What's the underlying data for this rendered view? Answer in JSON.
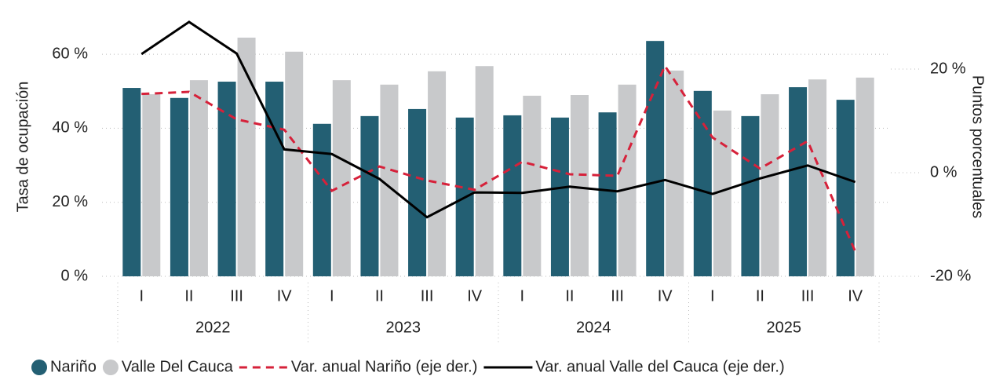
{
  "chart_data": {
    "type": "bar",
    "categories": [
      "I",
      "II",
      "III",
      "IV",
      "I",
      "II",
      "III",
      "IV",
      "I",
      "II",
      "III",
      "IV",
      "I",
      "II",
      "III",
      "IV"
    ],
    "years": [
      "2022",
      "2023",
      "2024",
      "2025"
    ],
    "y_label": "Tasa de ocupación",
    "y2_label": "Puntos porcentuales",
    "ylim": [
      0,
      70
    ],
    "yticks": [
      {
        "value": 0,
        "label": "0 %"
      },
      {
        "value": 20,
        "label": "20 %"
      },
      {
        "value": 40,
        "label": "40 %"
      },
      {
        "value": 60,
        "label": "60 %"
      }
    ],
    "y2lim": [
      -20,
      30
    ],
    "y2ticks": [
      {
        "value": -20,
        "label": "-20 %"
      },
      {
        "value": 0,
        "label": "0 %"
      },
      {
        "value": 20,
        "label": "20 %"
      }
    ],
    "grid": true,
    "legend": "bottom",
    "series": [
      {
        "name": "Nariño",
        "type": "bar",
        "color": "#235f73",
        "values": [
          50.9,
          48.2,
          52.6,
          52.6,
          41.2,
          43.3,
          45.2,
          42.9,
          43.5,
          42.9,
          44.3,
          63.6,
          50.1,
          43.3,
          51.1,
          47.7
        ]
      },
      {
        "name": "Valle Del Cauca",
        "type": "bar",
        "color": "#c8c9cb",
        "values": [
          49.2,
          53.0,
          64.5,
          60.7,
          53.0,
          51.8,
          55.4,
          56.8,
          48.8,
          49.0,
          51.8,
          55.6,
          44.8,
          49.2,
          53.2,
          53.7
        ]
      },
      {
        "name": "Var. anual Nariño (eje der.)",
        "type": "line",
        "axis": "y2",
        "dashed": true,
        "color": "#d6213a",
        "values": [
          15.2,
          15.6,
          10.3,
          8.3,
          -3.5,
          1.2,
          -1.5,
          -3.3,
          2.1,
          -0.3,
          -0.6,
          20.6,
          6.8,
          0.8,
          6.1,
          -15.2
        ]
      },
      {
        "name": "Var. anual Valle del Cauca (eje der.)",
        "type": "line",
        "axis": "y2",
        "color": "#000000",
        "values": [
          22.9,
          29.1,
          23.0,
          4.5,
          3.6,
          -1.2,
          -8.6,
          -3.8,
          -3.9,
          -2.7,
          -3.6,
          -1.4,
          -4.1,
          -1.1,
          1.4,
          -1.8
        ]
      }
    ]
  }
}
